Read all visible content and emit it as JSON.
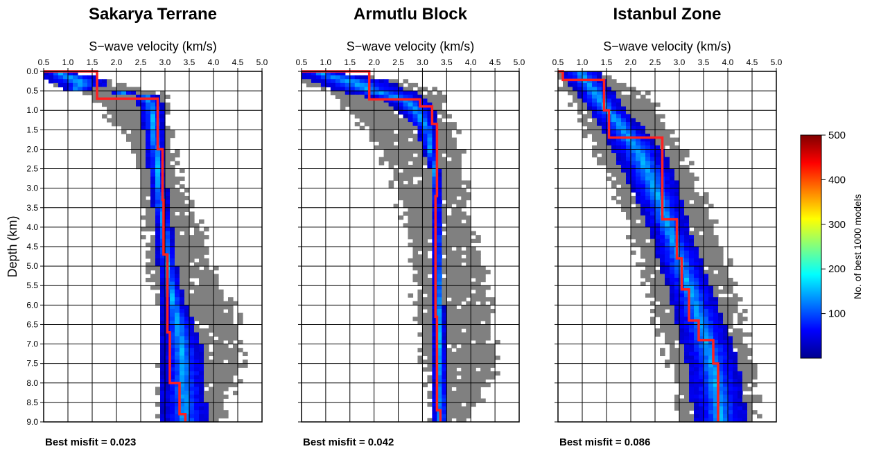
{
  "chart_data": [
    {
      "type": "heatmap",
      "title": "Sakarya Terrane",
      "xlabel": "S−wave velocity (km/s)",
      "ylabel": "Depth (km)",
      "xlim": [
        0.5,
        5.0
      ],
      "ylim": [
        0.0,
        9.0
      ],
      "xticks": [
        "0.5",
        "1.0",
        "1.5",
        "2.0",
        "2.5",
        "3.0",
        "3.5",
        "4.0",
        "4.5",
        "5.0"
      ],
      "yticks": [
        "0.0",
        "0.5",
        "1.0",
        "1.5",
        "2.0",
        "2.5",
        "3.0",
        "3.5",
        "4.0",
        "4.5",
        "5.0",
        "5.5",
        "6.0",
        "6.5",
        "7.0",
        "7.5",
        "8.0",
        "8.5",
        "9.0"
      ],
      "grid": true,
      "misfit_text": "Best misfit = 0.023",
      "best_model": [
        [
          0.5,
          0.0
        ],
        [
          1.6,
          0.0
        ],
        [
          1.6,
          0.12
        ],
        [
          1.6,
          0.7
        ],
        [
          2.85,
          0.7
        ],
        [
          2.85,
          2.0
        ],
        [
          2.95,
          2.0
        ],
        [
          2.95,
          3.3
        ],
        [
          2.97,
          3.3
        ],
        [
          2.97,
          4.7
        ],
        [
          3.05,
          4.7
        ],
        [
          3.05,
          6.7
        ],
        [
          3.1,
          6.7
        ],
        [
          3.1,
          8.0
        ],
        [
          3.3,
          8.0
        ],
        [
          3.3,
          8.8
        ],
        [
          3.42,
          8.8
        ],
        [
          3.42,
          9.0
        ]
      ],
      "core": [
        [
          0.0,
          0.5,
          1.05
        ],
        [
          0.15,
          0.5,
          1.55
        ],
        [
          0.3,
          0.7,
          1.9
        ],
        [
          0.45,
          0.9,
          1.5
        ],
        [
          0.6,
          2.35,
          2.85
        ],
        [
          0.9,
          2.45,
          3.0
        ],
        [
          1.5,
          2.55,
          2.98
        ],
        [
          2.0,
          2.6,
          3.02
        ],
        [
          2.5,
          2.65,
          3.05
        ],
        [
          3.0,
          2.7,
          3.05
        ],
        [
          3.5,
          2.75,
          3.08
        ],
        [
          4.0,
          2.8,
          3.15
        ],
        [
          4.5,
          2.82,
          3.2
        ],
        [
          5.0,
          2.85,
          3.25
        ],
        [
          5.5,
          2.9,
          3.32
        ],
        [
          6.0,
          2.9,
          3.45
        ],
        [
          6.5,
          2.92,
          3.6
        ],
        [
          7.0,
          2.92,
          3.75
        ],
        [
          7.5,
          2.95,
          3.8
        ],
        [
          8.0,
          2.95,
          3.82
        ],
        [
          8.5,
          2.95,
          3.85
        ],
        [
          9.0,
          2.95,
          3.85
        ]
      ],
      "halo": [
        [
          0.0,
          0.5,
          1.0
        ],
        [
          0.2,
          0.5,
          1.8
        ],
        [
          0.4,
          0.8,
          2.3
        ],
        [
          0.6,
          1.5,
          3.0
        ],
        [
          1.0,
          1.8,
          3.0
        ],
        [
          1.5,
          2.1,
          3.05
        ],
        [
          2.0,
          2.35,
          3.1
        ],
        [
          2.5,
          2.45,
          3.2
        ],
        [
          3.0,
          2.5,
          3.3
        ],
        [
          3.5,
          2.55,
          3.5
        ],
        [
          4.0,
          2.65,
          3.7
        ],
        [
          4.5,
          2.7,
          3.8
        ],
        [
          5.0,
          2.75,
          3.9
        ],
        [
          5.5,
          2.8,
          4.1
        ],
        [
          6.0,
          2.85,
          4.35
        ],
        [
          6.5,
          2.9,
          4.45
        ],
        [
          7.0,
          2.92,
          4.5
        ],
        [
          7.5,
          2.93,
          4.55
        ],
        [
          8.0,
          2.95,
          4.4
        ],
        [
          8.5,
          2.95,
          4.2
        ],
        [
          9.0,
          2.95,
          4.1
        ]
      ]
    },
    {
      "type": "heatmap",
      "title": "Armutlu Block",
      "xlabel": "S−wave velocity (km/s)",
      "ylabel": "",
      "xlim": [
        0.5,
        5.0
      ],
      "ylim": [
        0.0,
        9.0
      ],
      "xticks": [
        "0.5",
        "1.0",
        "1.5",
        "2.0",
        "2.5",
        "3.0",
        "3.5",
        "4.0",
        "4.5",
        "5.0"
      ],
      "grid": true,
      "misfit_text": "Best misfit = 0.042",
      "best_model": [
        [
          0.5,
          0.0
        ],
        [
          1.9,
          0.0
        ],
        [
          1.9,
          0.72
        ],
        [
          2.95,
          0.72
        ],
        [
          2.95,
          0.9
        ],
        [
          3.2,
          0.9
        ],
        [
          3.2,
          1.35
        ],
        [
          3.3,
          1.35
        ],
        [
          3.3,
          3.2
        ],
        [
          3.27,
          3.2
        ],
        [
          3.27,
          6.3
        ],
        [
          3.3,
          6.3
        ],
        [
          3.3,
          8.7
        ],
        [
          3.37,
          8.7
        ],
        [
          3.37,
          9.0
        ]
      ],
      "core": [
        [
          0.0,
          0.5,
          1.1
        ],
        [
          0.15,
          0.5,
          1.9
        ],
        [
          0.3,
          0.8,
          2.5
        ],
        [
          0.45,
          1.1,
          2.6
        ],
        [
          0.6,
          1.6,
          3.0
        ],
        [
          0.75,
          2.2,
          3.15
        ],
        [
          1.0,
          2.5,
          3.25
        ],
        [
          1.5,
          2.9,
          3.3
        ],
        [
          2.0,
          3.0,
          3.3
        ],
        [
          2.5,
          3.15,
          3.35
        ],
        [
          3.0,
          3.2,
          3.38
        ],
        [
          4.0,
          3.22,
          3.4
        ],
        [
          5.0,
          3.22,
          3.42
        ],
        [
          6.0,
          3.22,
          3.45
        ],
        [
          7.0,
          3.22,
          3.48
        ],
        [
          8.0,
          3.22,
          3.52
        ],
        [
          8.5,
          3.2,
          3.55
        ],
        [
          9.0,
          3.2,
          3.55
        ]
      ],
      "halo": [
        [
          0.0,
          0.5,
          1.1
        ],
        [
          0.2,
          0.5,
          2.3
        ],
        [
          0.4,
          0.8,
          3.1
        ],
        [
          0.6,
          1.2,
          3.3
        ],
        [
          1.0,
          1.5,
          3.45
        ],
        [
          1.5,
          1.9,
          3.6
        ],
        [
          2.0,
          2.15,
          3.75
        ],
        [
          2.5,
          2.35,
          3.8
        ],
        [
          3.0,
          2.5,
          3.85
        ],
        [
          3.5,
          2.6,
          3.9
        ],
        [
          4.0,
          2.7,
          4.0
        ],
        [
          4.5,
          2.75,
          4.1
        ],
        [
          5.0,
          2.8,
          4.2
        ],
        [
          5.5,
          2.85,
          4.3
        ],
        [
          6.0,
          2.9,
          4.35
        ],
        [
          6.5,
          2.95,
          4.4
        ],
        [
          7.0,
          3.0,
          4.45
        ],
        [
          7.5,
          3.1,
          4.5
        ],
        [
          8.0,
          3.15,
          4.3
        ],
        [
          8.5,
          3.2,
          4.1
        ],
        [
          9.0,
          3.2,
          3.9
        ]
      ]
    },
    {
      "type": "heatmap",
      "title": "Istanbul Zone",
      "xlabel": "S−wave velocity (km/s)",
      "ylabel": "",
      "xlim": [
        0.5,
        5.0
      ],
      "ylim": [
        0.0,
        9.0
      ],
      "xticks": [
        "0.5",
        "1.0",
        "1.5",
        "2.0",
        "2.5",
        "3.0",
        "3.5",
        "4.0",
        "4.5",
        "5.0"
      ],
      "grid": true,
      "misfit_text": "Best misfit = 0.086",
      "best_model": [
        [
          0.5,
          0.0
        ],
        [
          0.6,
          0.0
        ],
        [
          0.6,
          0.22
        ],
        [
          1.45,
          0.22
        ],
        [
          1.45,
          1.0
        ],
        [
          1.55,
          1.0
        ],
        [
          1.55,
          1.7
        ],
        [
          2.65,
          1.7
        ],
        [
          2.65,
          3.8
        ],
        [
          2.95,
          3.8
        ],
        [
          2.95,
          4.8
        ],
        [
          3.05,
          4.8
        ],
        [
          3.05,
          5.6
        ],
        [
          3.2,
          5.6
        ],
        [
          3.2,
          6.4
        ],
        [
          3.4,
          6.4
        ],
        [
          3.4,
          6.9
        ],
        [
          3.7,
          6.9
        ],
        [
          3.7,
          7.5
        ],
        [
          3.8,
          7.5
        ],
        [
          3.8,
          9.0
        ]
      ],
      "core": [
        [
          0.0,
          0.55,
          1.35
        ],
        [
          0.3,
          0.7,
          1.5
        ],
        [
          0.6,
          0.9,
          1.7
        ],
        [
          1.0,
          1.15,
          1.9
        ],
        [
          1.5,
          1.4,
          2.3
        ],
        [
          2.0,
          1.6,
          2.65
        ],
        [
          2.5,
          1.8,
          2.85
        ],
        [
          3.0,
          2.0,
          3.0
        ],
        [
          3.5,
          2.2,
          3.1
        ],
        [
          4.0,
          2.35,
          3.2
        ],
        [
          4.5,
          2.5,
          3.35
        ],
        [
          5.0,
          2.6,
          3.5
        ],
        [
          5.5,
          2.75,
          3.65
        ],
        [
          6.0,
          2.85,
          3.8
        ],
        [
          6.5,
          2.95,
          3.95
        ],
        [
          7.0,
          3.05,
          4.1
        ],
        [
          7.5,
          3.15,
          4.2
        ],
        [
          8.0,
          3.2,
          4.3
        ],
        [
          8.5,
          3.25,
          4.35
        ],
        [
          9.0,
          3.3,
          4.4
        ]
      ],
      "halo": [
        [
          0.0,
          0.5,
          1.35
        ],
        [
          0.3,
          0.55,
          1.8
        ],
        [
          0.6,
          0.75,
          2.3
        ],
        [
          1.0,
          0.9,
          2.5
        ],
        [
          1.5,
          1.1,
          2.75
        ],
        [
          2.0,
          1.3,
          3.0
        ],
        [
          2.5,
          1.5,
          3.2
        ],
        [
          3.0,
          1.7,
          3.35
        ],
        [
          3.5,
          1.85,
          3.55
        ],
        [
          4.0,
          2.0,
          3.7
        ],
        [
          4.5,
          2.15,
          3.85
        ],
        [
          5.0,
          2.3,
          3.95
        ],
        [
          5.5,
          2.4,
          4.1
        ],
        [
          6.0,
          2.5,
          4.2
        ],
        [
          6.5,
          2.6,
          4.3
        ],
        [
          7.0,
          2.75,
          4.35
        ],
        [
          7.5,
          2.85,
          4.45
        ],
        [
          8.0,
          2.95,
          4.5
        ],
        [
          8.5,
          3.0,
          4.5
        ],
        [
          9.0,
          3.05,
          4.5
        ]
      ]
    }
  ],
  "colorbar": {
    "label": "No. of best 1000 models",
    "ticks": [
      "100",
      "200",
      "300",
      "400",
      "500"
    ],
    "colors": [
      "#00008f",
      "#0000ff",
      "#0080ff",
      "#00ffff",
      "#80ff80",
      "#ffff00",
      "#ff8000",
      "#ff0000",
      "#800000"
    ]
  },
  "colors": {
    "halo": "#808080",
    "best_model": "#ff2020"
  }
}
